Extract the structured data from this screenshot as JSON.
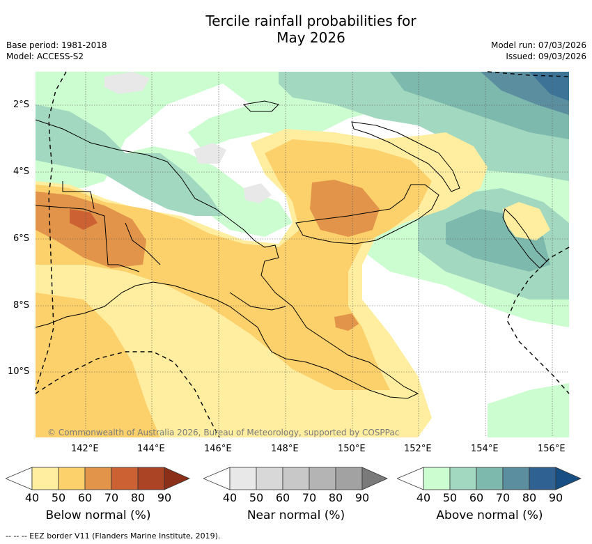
{
  "header": {
    "title_line1": "Tercile rainfall probabilities for",
    "title_line2": "May 2026",
    "base_period": "Base period: 1981-2018",
    "model": "Model: ACCESS-S2",
    "model_run": "Model run: 07/03/2026",
    "issued": "Issued: 09/03/2026"
  },
  "map": {
    "lat_labels": [
      "2°S",
      "4°S",
      "6°S",
      "8°S",
      "10°S"
    ],
    "lon_labels": [
      "142°E",
      "144°E",
      "146°E",
      "148°E",
      "150°E",
      "152°E",
      "154°E",
      "156°E"
    ],
    "copyright": "© Commonwealth of Australia 2026, Bureau of Meteorology, supported by COSPPac"
  },
  "colorbars": [
    {
      "label": "Below normal (%)",
      "ticks": [
        "40",
        "50",
        "60",
        "70",
        "80",
        "90"
      ],
      "colors": [
        "#ffffff",
        "#ffeea0",
        "#fcd06b",
        "#e1944a",
        "#cc6133",
        "#ab4425",
        "#8b2f18"
      ]
    },
    {
      "label": "Near normal (%)",
      "ticks": [
        "40",
        "50",
        "60",
        "70",
        "80",
        "90"
      ],
      "colors": [
        "#ffffff",
        "#e8e8e8",
        "#d8d8d8",
        "#c8c8c8",
        "#b4b4b4",
        "#a2a2a2",
        "#7a7a7a"
      ]
    },
    {
      "label": "Above normal (%)",
      "ticks": [
        "40",
        "50",
        "60",
        "70",
        "80",
        "90"
      ],
      "colors": [
        "#ffffff",
        "#ccfdd0",
        "#a2d8c0",
        "#7eb9ae",
        "#5b8fa0",
        "#2f6192",
        "#174f84"
      ]
    }
  ],
  "footnote": "-- -- -- EEZ border V11 (Flanders Marine Institute, 2019).",
  "colors": {
    "below_50": "#ffeea0",
    "below_60": "#fcd06b",
    "below_70": "#e1944a",
    "near_50": "#e8e8e8",
    "above_50": "#ccfdd0",
    "above_60": "#a2d8c0",
    "above_70": "#7eb9ae",
    "above_80": "#5b8fa0",
    "above_90": "#3d7397"
  }
}
